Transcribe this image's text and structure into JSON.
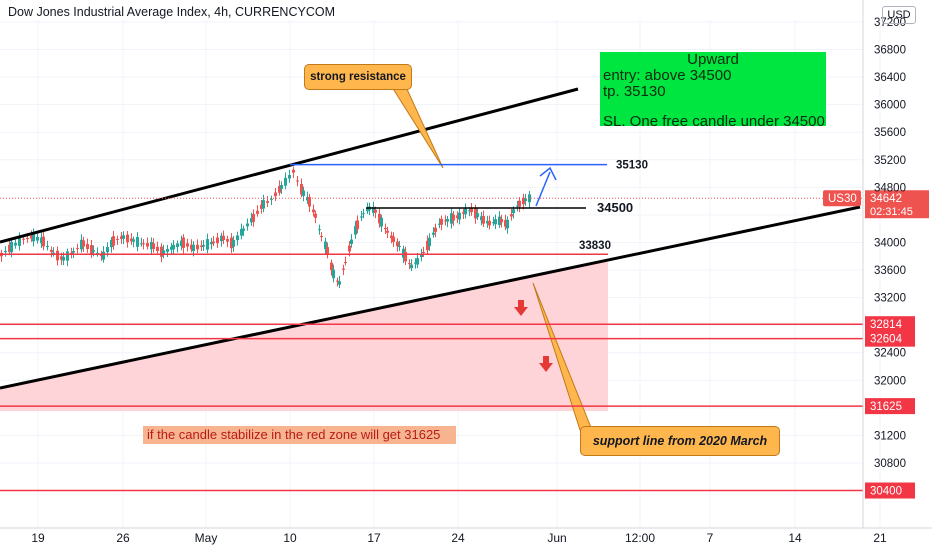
{
  "header": {
    "title": "Dow Jones Industrial Average Index, 4h, CURRENCYCOM",
    "currency_button": "USD"
  },
  "colors": {
    "candle_up": "#26a69a",
    "candle_down": "#ef5350",
    "support_lines": "#f23645",
    "red_zone": "#ffcdd2",
    "trend_lines": "#000000",
    "target_line": "#2962ff",
    "strategy_box": "#00e640",
    "callout": "#ffb74d"
  },
  "chart_data": {
    "type": "candlestick",
    "y_axis": {
      "side": "right",
      "range": [
        30000,
        37300
      ],
      "ticks": [
        30400,
        30800,
        31200,
        31600,
        32000,
        32400,
        32800,
        33200,
        33600,
        34000,
        34400,
        34800,
        35200,
        35600,
        36000,
        36400,
        36800,
        37200
      ],
      "tick_labels": [
        "",
        "30800",
        "31200",
        "",
        "32000",
        "32400",
        "",
        "33200",
        "33600",
        "34000",
        "",
        "34800",
        "35200",
        "35600",
        "36000",
        "36400",
        "36800",
        "37200"
      ]
    },
    "x_axis": {
      "tick_labels": [
        "19",
        "26",
        "May",
        "10",
        "17",
        "24",
        "Jun",
        "12:00",
        "7",
        "14",
        "21"
      ]
    },
    "current_price": {
      "symbol": "US30",
      "value": "34642",
      "countdown": "02:31:45"
    },
    "price_path": [
      [
        0,
        33820
      ],
      [
        10,
        33930
      ],
      [
        22,
        34050
      ],
      [
        32,
        34080
      ],
      [
        42,
        34020
      ],
      [
        52,
        33850
      ],
      [
        62,
        33760
      ],
      [
        72,
        33860
      ],
      [
        82,
        33990
      ],
      [
        92,
        33880
      ],
      [
        102,
        33800
      ],
      [
        112,
        34020
      ],
      [
        122,
        34080
      ],
      [
        132,
        34030
      ],
      [
        142,
        33980
      ],
      [
        152,
        33950
      ],
      [
        162,
        33850
      ],
      [
        172,
        33930
      ],
      [
        182,
        34000
      ],
      [
        192,
        33920
      ],
      [
        202,
        33950
      ],
      [
        212,
        34000
      ],
      [
        222,
        34070
      ],
      [
        232,
        33980
      ],
      [
        242,
        34180
      ],
      [
        252,
        34350
      ],
      [
        262,
        34550
      ],
      [
        270,
        34620
      ],
      [
        280,
        34800
      ],
      [
        288,
        34950
      ],
      [
        292,
        35040
      ],
      [
        296,
        34900
      ],
      [
        302,
        34720
      ],
      [
        308,
        34600
      ],
      [
        314,
        34400
      ],
      [
        320,
        34100
      ],
      [
        326,
        33900
      ],
      [
        332,
        33550
      ],
      [
        338,
        33400
      ],
      [
        344,
        33700
      ],
      [
        350,
        34000
      ],
      [
        356,
        34250
      ],
      [
        362,
        34420
      ],
      [
        368,
        34500
      ],
      [
        374,
        34460
      ],
      [
        380,
        34300
      ],
      [
        386,
        34160
      ],
      [
        392,
        34050
      ],
      [
        398,
        33950
      ],
      [
        404,
        33800
      ],
      [
        410,
        33650
      ],
      [
        416,
        33720
      ],
      [
        422,
        33850
      ],
      [
        428,
        34000
      ],
      [
        434,
        34180
      ],
      [
        440,
        34300
      ],
      [
        446,
        34320
      ],
      [
        452,
        34360
      ],
      [
        458,
        34380
      ],
      [
        464,
        34450
      ],
      [
        470,
        34470
      ],
      [
        476,
        34400
      ],
      [
        482,
        34330
      ],
      [
        488,
        34280
      ],
      [
        494,
        34300
      ],
      [
        500,
        34320
      ],
      [
        506,
        34260
      ],
      [
        512,
        34450
      ],
      [
        518,
        34560
      ],
      [
        524,
        34620
      ],
      [
        530,
        34650
      ]
    ],
    "levels": [
      {
        "label": "35130",
        "value": 35130
      },
      {
        "label": "34500",
        "value": 34500
      },
      {
        "label": "33830",
        "value": 33830
      },
      {
        "label": "32814",
        "value": 32814
      },
      {
        "label": "32604",
        "value": 32604
      },
      {
        "label": "31625",
        "value": 31625
      },
      {
        "label": "30400",
        "value": 30400
      }
    ],
    "badges": [
      "32814",
      "32604",
      "31625",
      "30400"
    ]
  },
  "annotations": {
    "strong_resistance": "strong resistance",
    "support_line": "support line from 2020 March",
    "red_zone_note": "if the candle stabilize in the red zone will get 31625",
    "strategy": {
      "heading": "Upward",
      "entry": "entry: above 34500",
      "tp": "tp.  35130",
      "sl": "SL. One free candle under 34500"
    }
  }
}
